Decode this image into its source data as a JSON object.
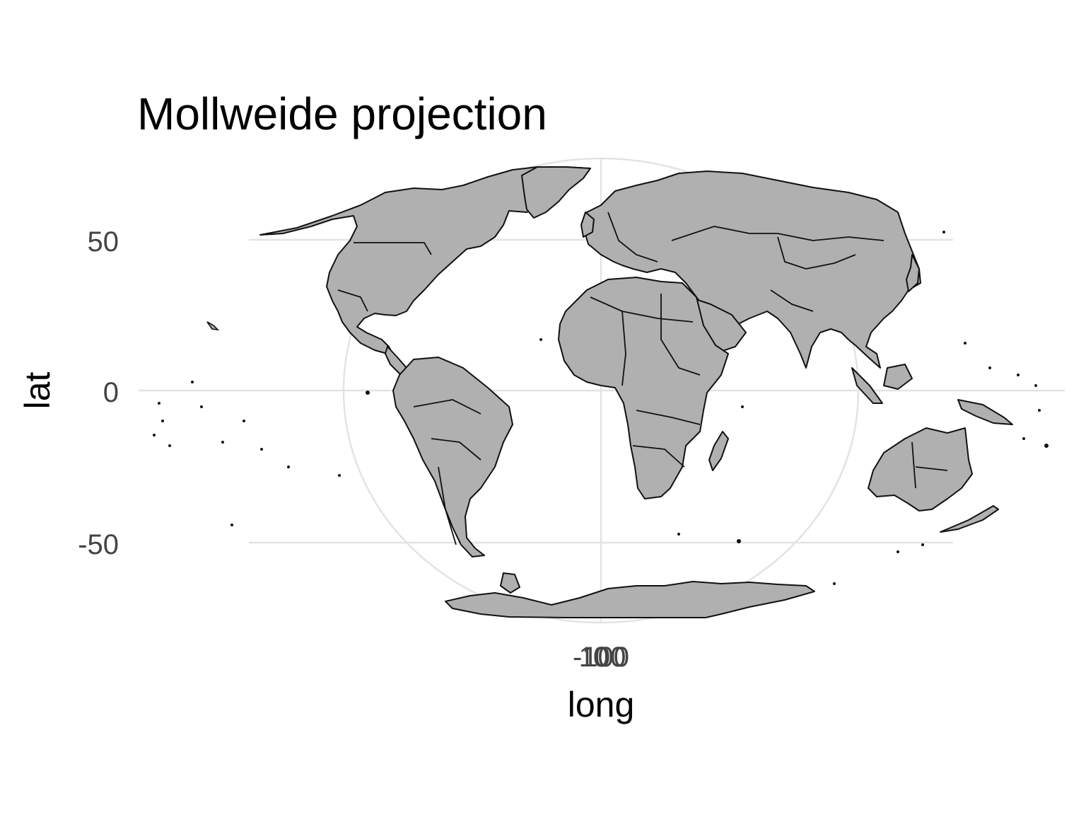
{
  "title": "Mollweide projection",
  "x_axis": {
    "label": "long",
    "ticks": [
      "-100",
      "0",
      "100"
    ]
  },
  "y_axis": {
    "label": "lat",
    "ticks": [
      "50",
      "0",
      "-50"
    ]
  },
  "colors": {
    "land": "#b0b0b0",
    "outline": "#111111",
    "grid": "#e3e3e3"
  },
  "projection": "mollweide"
}
